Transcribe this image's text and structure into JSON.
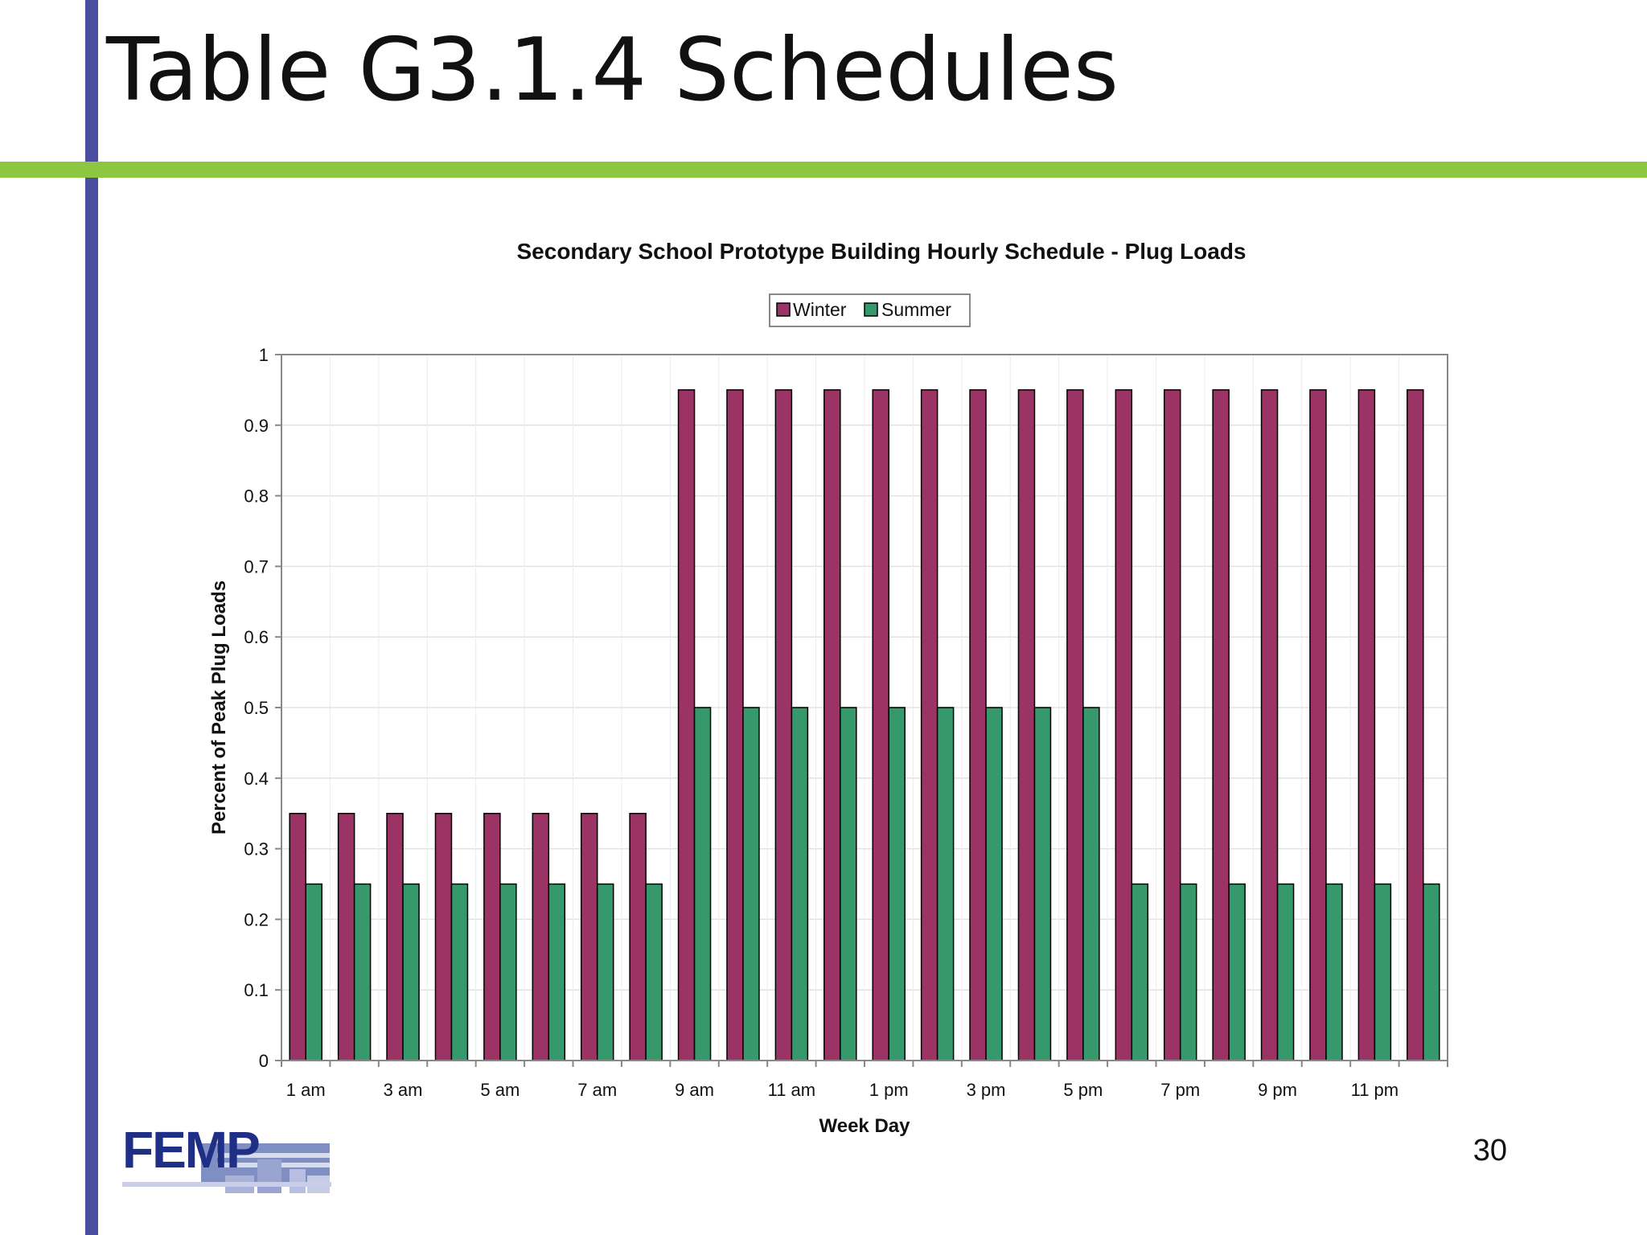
{
  "slide": {
    "title": "Table G3.1.4 Schedules",
    "page_number": "30",
    "logo_text": "FEMP"
  },
  "colors": {
    "winter": "#9b3365",
    "summer": "#36996b",
    "left_bar": "#4a4e9e",
    "top_rule": "#8dc641"
  },
  "chart_data": {
    "type": "bar",
    "title": "Secondary School Prototype Building Hourly Schedule - Plug Loads",
    "xlabel": "Week Day",
    "ylabel": "Percent of Peak Plug Loads",
    "ylim": [
      0,
      1
    ],
    "yticks": [
      "0",
      "0.1",
      "0.2",
      "0.3",
      "0.4",
      "0.5",
      "0.6",
      "0.7",
      "0.8",
      "0.9",
      "1"
    ],
    "xtick_labels": [
      "1 am",
      "3 am",
      "5 am",
      "7 am",
      "9 am",
      "11 am",
      "1 pm",
      "3 pm",
      "5 pm",
      "7 pm",
      "9 pm",
      "11 pm"
    ],
    "xtick_every": 2,
    "legend_position": "top-center",
    "grid": true,
    "categories": [
      "1",
      "2",
      "3",
      "4",
      "5",
      "6",
      "7",
      "8",
      "9",
      "10",
      "11",
      "12",
      "13",
      "14",
      "15",
      "16",
      "17",
      "18",
      "19",
      "20",
      "21",
      "22",
      "23",
      "24"
    ],
    "series": [
      {
        "name": "Winter",
        "values": [
          0.35,
          0.35,
          0.35,
          0.35,
          0.35,
          0.35,
          0.35,
          0.35,
          0.95,
          0.95,
          0.95,
          0.95,
          0.95,
          0.95,
          0.95,
          0.95,
          0.95,
          0.95,
          0.95,
          0.95,
          0.95,
          0.95,
          0.95,
          0.95
        ]
      },
      {
        "name": "Summer",
        "values": [
          0.25,
          0.25,
          0.25,
          0.25,
          0.25,
          0.25,
          0.25,
          0.25,
          0.5,
          0.5,
          0.5,
          0.5,
          0.5,
          0.5,
          0.5,
          0.5,
          0.5,
          0.25,
          0.25,
          0.25,
          0.25,
          0.25,
          0.25,
          0.25
        ]
      }
    ]
  }
}
